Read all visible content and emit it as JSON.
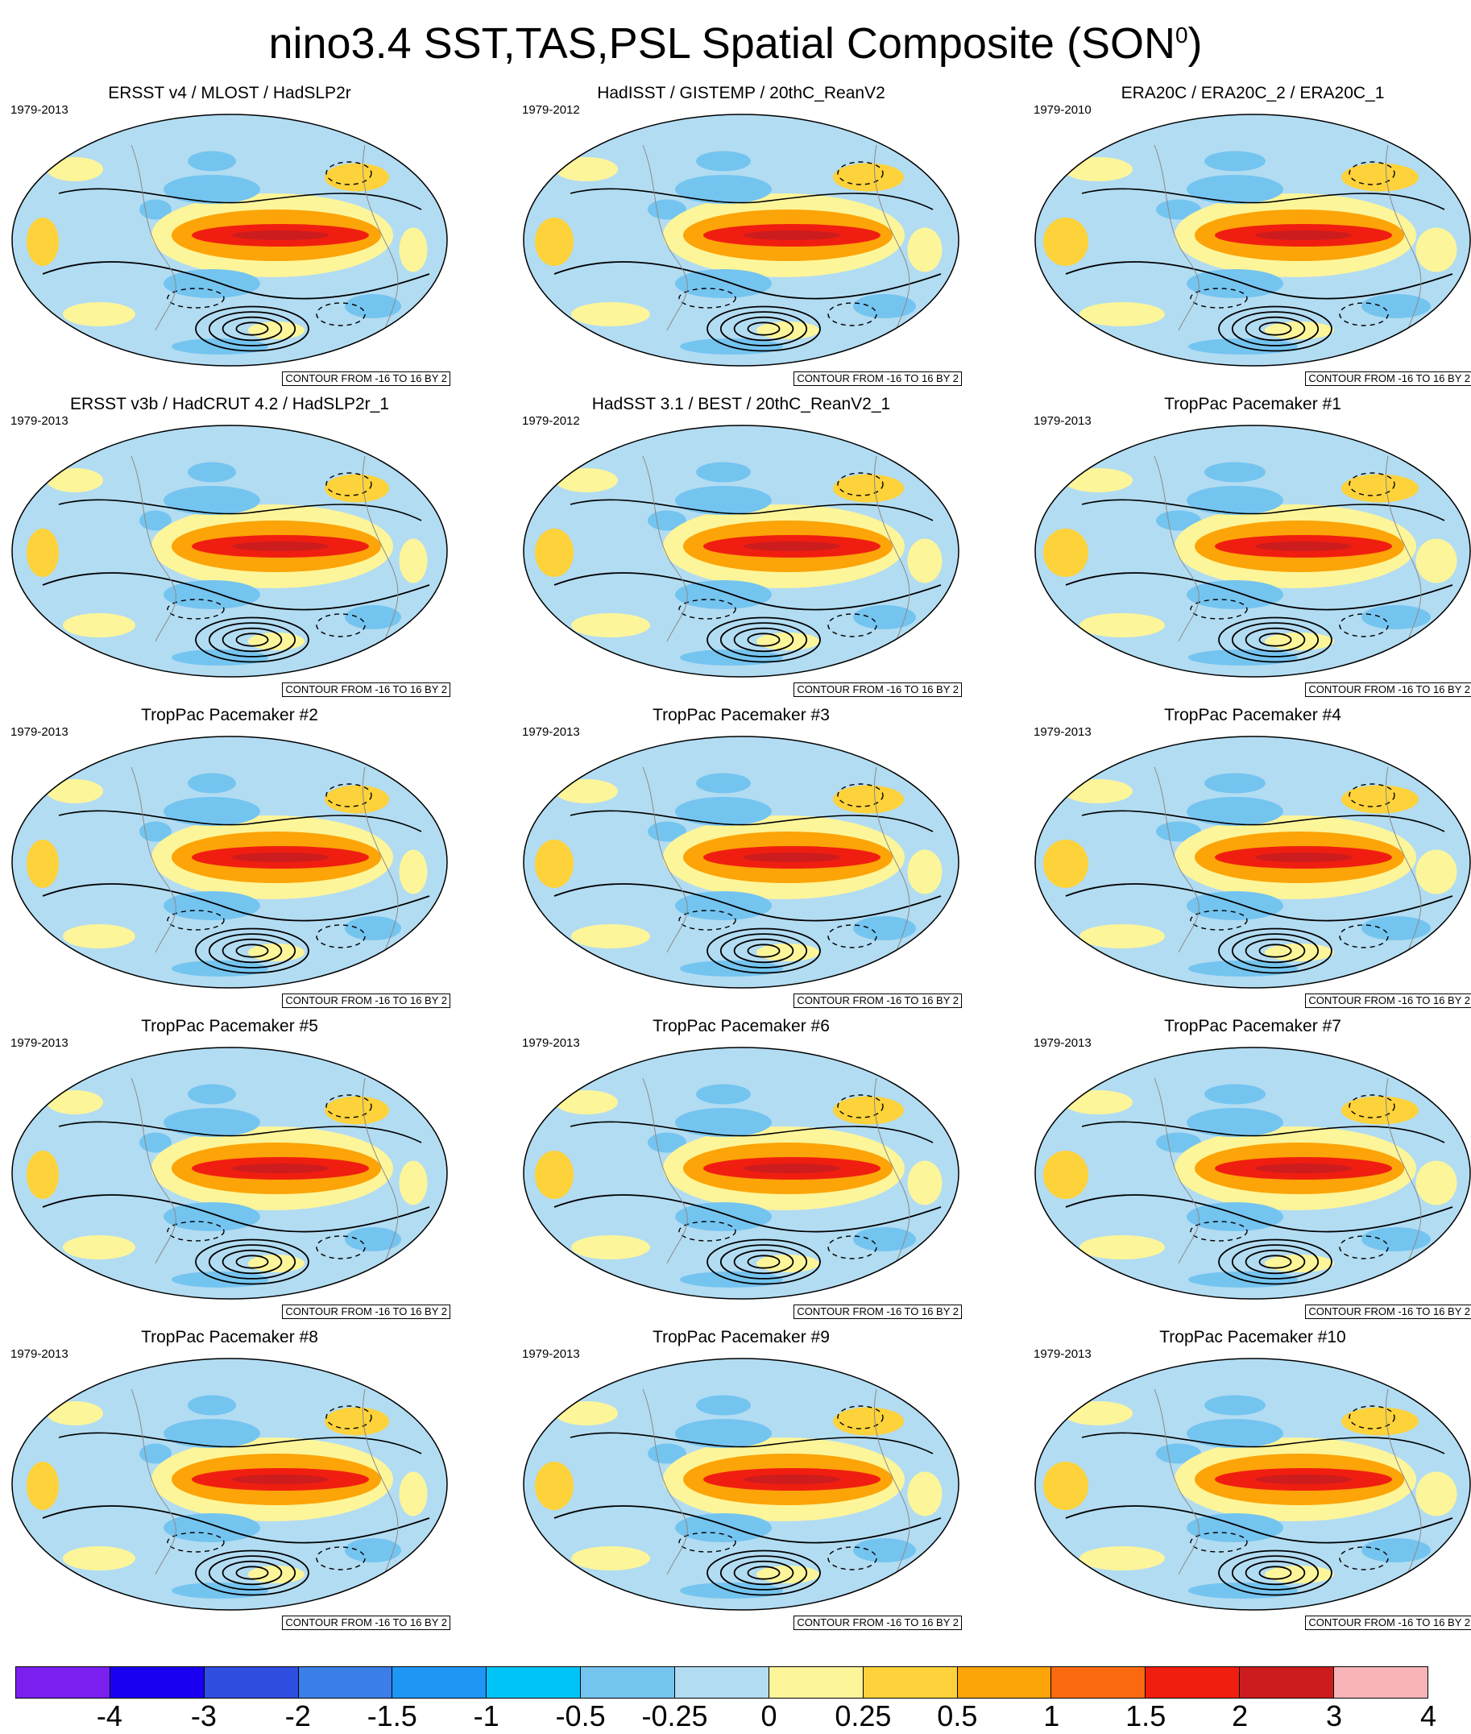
{
  "title": {
    "text": "nino3.4 SST,TAS,PSL Spatial Composite (SON",
    "sup": "0",
    "close": ")"
  },
  "panels": [
    {
      "title": "ERSST v4 / MLOST / HadSLP2r",
      "years": "1979-2013",
      "contour": "CONTOUR FROM -16 TO 16 BY 2"
    },
    {
      "title": "HadISST / GISTEMP / 20thC_ReanV2",
      "years": "1979-2012",
      "contour": "CONTOUR FROM -16 TO 16 BY 2"
    },
    {
      "title": "ERA20C / ERA20C_2 / ERA20C_1",
      "years": "1979-2010",
      "contour": "CONTOUR FROM -16 TO 16 BY 2"
    },
    {
      "title": "ERSST v3b / HadCRUT 4.2 / HadSLP2r_1",
      "years": "1979-2013",
      "contour": "CONTOUR FROM -16 TO 16 BY 2"
    },
    {
      "title": "HadSST 3.1 / BEST / 20thC_ReanV2_1",
      "years": "1979-2012",
      "contour": "CONTOUR FROM -16 TO 16 BY 2"
    },
    {
      "title": "TropPac Pacemaker #1",
      "years": "1979-2013",
      "contour": "CONTOUR FROM -16 TO 16 BY 2"
    },
    {
      "title": "TropPac Pacemaker #2",
      "years": "1979-2013",
      "contour": "CONTOUR FROM -16 TO 16 BY 2"
    },
    {
      "title": "TropPac Pacemaker #3",
      "years": "1979-2013",
      "contour": "CONTOUR FROM -16 TO 16 BY 2"
    },
    {
      "title": "TropPac Pacemaker #4",
      "years": "1979-2013",
      "contour": "CONTOUR FROM -16 TO 16 BY 2"
    },
    {
      "title": "TropPac Pacemaker #5",
      "years": "1979-2013",
      "contour": "CONTOUR FROM -16 TO 16 BY 2"
    },
    {
      "title": "TropPac Pacemaker #6",
      "years": "1979-2013",
      "contour": "CONTOUR FROM -16 TO 16 BY 2"
    },
    {
      "title": "TropPac Pacemaker #7",
      "years": "1979-2013",
      "contour": "CONTOUR FROM -16 TO 16 BY 2"
    },
    {
      "title": "TropPac Pacemaker #8",
      "years": "1979-2013",
      "contour": "CONTOUR FROM -16 TO 16 BY 2"
    },
    {
      "title": "TropPac Pacemaker #9",
      "years": "1979-2013",
      "contour": "CONTOUR FROM -16 TO 16 BY 2"
    },
    {
      "title": "TropPac Pacemaker #10",
      "years": "1979-2013",
      "contour": "CONTOUR FROM -16 TO 16 BY 2"
    }
  ],
  "colorbar": {
    "colors": [
      "#7a1ff0",
      "#1a00f0",
      "#2e4fe0",
      "#3c7ee8",
      "#1e96f5",
      "#00c4f8",
      "#74c4f0",
      "#b2dcf2",
      "#fdf59a",
      "#fdd23a",
      "#fca408",
      "#fb6a10",
      "#f01e10",
      "#cc1c1e",
      "#f8b4b8"
    ],
    "labels": [
      "-4",
      "-3",
      "-2",
      "-1.5",
      "-1",
      "-0.5",
      "-0.25",
      "0",
      "0.25",
      "0.5",
      "1",
      "1.5",
      "2",
      "3",
      "4"
    ]
  },
  "map_colors": {
    "ocean_light": "#b2dcf2",
    "ocean_blue": "#74c4f0",
    "warm_yellow": "#fdf59a",
    "warm_gold": "#fdd23a",
    "warm_orange": "#fca408",
    "enso_red": "#f01e10",
    "enso_core": "#cc1c1e"
  }
}
